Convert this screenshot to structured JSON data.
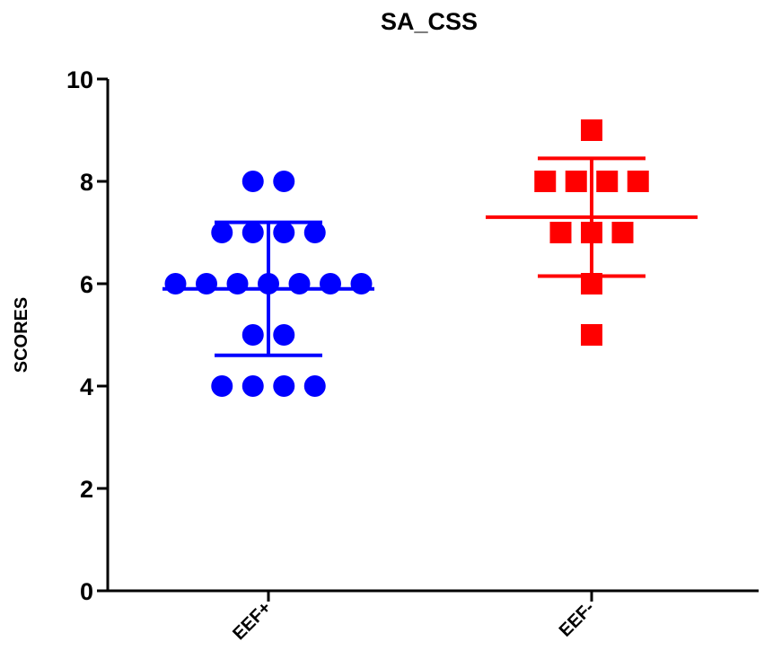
{
  "chart_data": {
    "type": "scatter",
    "title": "SA_CSS",
    "xlabel": "",
    "ylabel": "SCORES",
    "ylim": [
      0,
      10
    ],
    "yticks": [
      0,
      2,
      4,
      6,
      8,
      10
    ],
    "categories": [
      "EEF+",
      "EEF-"
    ],
    "grid": false,
    "series": [
      {
        "category": "EEF+",
        "marker": "circle",
        "color": "#0000ff",
        "values": [
          8,
          8,
          7,
          7,
          7,
          7,
          6,
          6,
          6,
          6,
          6,
          6,
          6,
          5,
          5,
          4,
          4,
          4,
          4
        ],
        "mean": 5.9,
        "sd_upper": 7.2,
        "sd_lower": 4.6
      },
      {
        "category": "EEF-",
        "marker": "square",
        "color": "#ff0000",
        "values": [
          9,
          8,
          8,
          8,
          8,
          7,
          7,
          7,
          6,
          5
        ],
        "mean": 7.3,
        "sd_upper": 8.45,
        "sd_lower": 6.15
      }
    ]
  }
}
